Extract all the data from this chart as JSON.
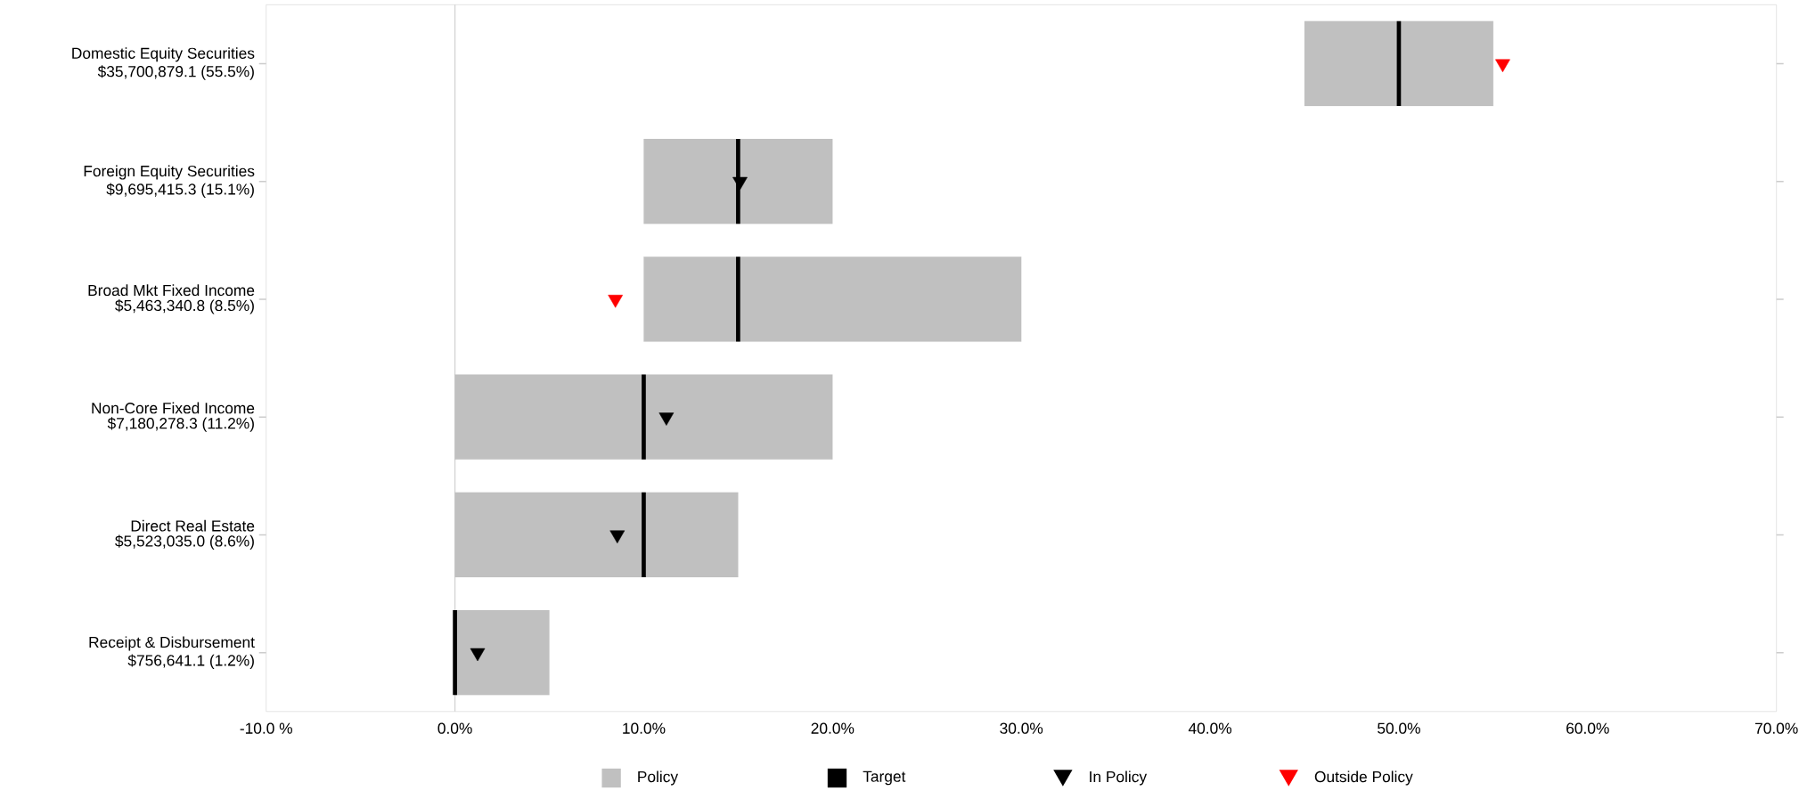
{
  "chart_data": {
    "type": "bar",
    "orientation": "horizontal",
    "categories": [
      "Domestic Equity Securities",
      "Foreign Equity Securities",
      "Broad Mkt Fixed Income",
      "Non-Core Fixed Income",
      "Direct Real Estate",
      "Receipt & Disbursement"
    ],
    "value_labels": [
      "$35,700,879.1 (55.5%)",
      "$9,695,415.3 (15.1%)",
      "$5,463,340.8 (8.5%)",
      "$7,180,278.3 (11.2%)",
      "$5,523,035.0 (8.6%)",
      "$756,641.1 (1.2%)"
    ],
    "series": [
      {
        "name": "Policy",
        "color": "#c0c0c0",
        "base": [
          45,
          10,
          10,
          0,
          0,
          0
        ],
        "values": [
          10,
          10,
          20,
          20,
          15,
          5
        ]
      },
      {
        "name": "Target",
        "type": "bar",
        "color": "#000000",
        "base": [
          50,
          15,
          15,
          10,
          10,
          0
        ],
        "values": [
          0,
          0,
          0,
          0,
          0,
          0
        ]
      },
      {
        "name": "In Policy",
        "type": "scatter",
        "marker": "triangle",
        "color": "#000000",
        "values": [
          null,
          15.1,
          null,
          11.2,
          8.6,
          1.2
        ]
      },
      {
        "name": "Outside Policy",
        "type": "scatter",
        "marker": "triangle",
        "color": "#ff0000",
        "values": [
          55.5,
          null,
          8.5,
          null,
          null,
          null
        ]
      }
    ],
    "xlim": [
      -10,
      70
    ],
    "xticks": [
      {
        "value": -10,
        "label": "-10.0 %"
      },
      {
        "value": 0,
        "label": "0.0%"
      },
      {
        "value": 10,
        "label": "10.0%"
      },
      {
        "value": 20,
        "label": "20.0%"
      },
      {
        "value": 30,
        "label": "30.0%"
      },
      {
        "value": 40,
        "label": "40.0%"
      },
      {
        "value": 50,
        "label": "50.0%"
      },
      {
        "value": 60,
        "label": "60.0%"
      },
      {
        "value": 70,
        "label": "70.0%"
      }
    ],
    "ref_lines": [
      {
        "axis": "x",
        "value": 0,
        "color": "#d3d3d3"
      }
    ],
    "legend": "bottom"
  }
}
